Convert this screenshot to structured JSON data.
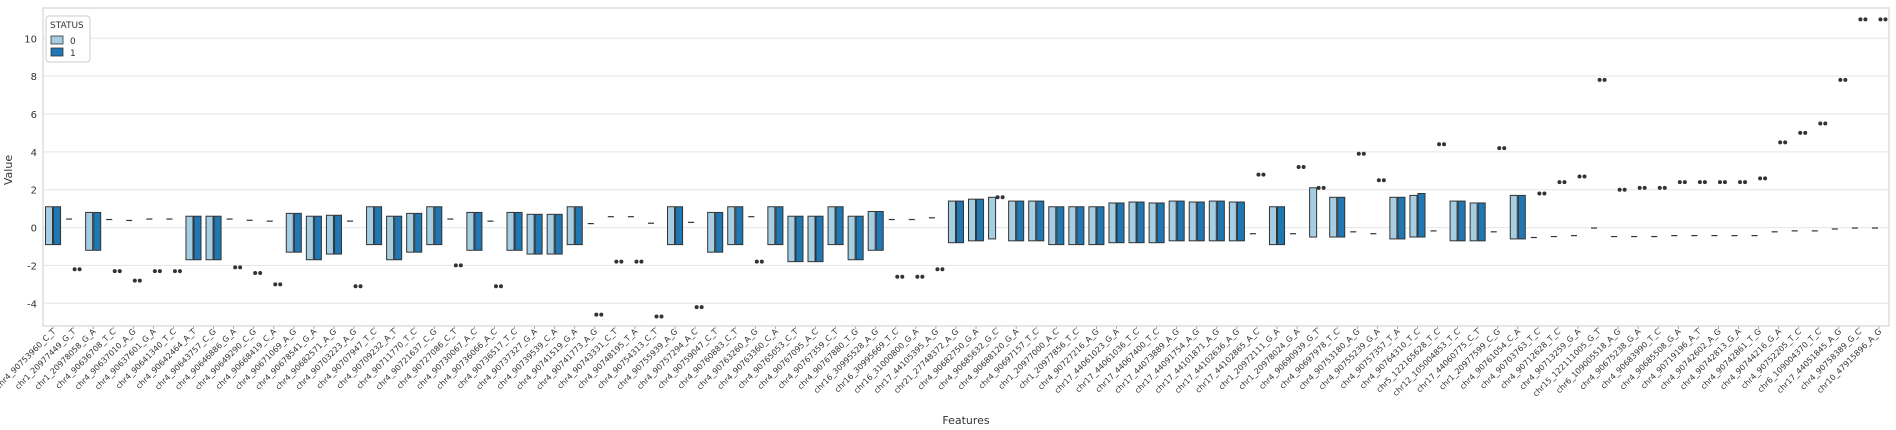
{
  "chart_data": {
    "type": "box",
    "title": "",
    "xlabel": "Features",
    "ylabel": "Value",
    "ylim": [
      -5.2,
      11.6
    ],
    "yticks": [
      -4,
      -2,
      0,
      2,
      4,
      6,
      8,
      10
    ],
    "grid": true,
    "legend": {
      "title": "STATUS",
      "entries": [
        "0",
        "1"
      ],
      "position": "top-left"
    },
    "series_colors": {
      "0": "#a6cee3",
      "1": "#1f78b4"
    },
    "categories": [
      "chr4_90753960_C_T",
      "chr1_20977449_G_T",
      "chr1_20978058_G_A",
      "chr4_90636708_T_C",
      "chr4_90637010_A_G",
      "chr4_90637601_G_A",
      "chr4_90641340_T_C",
      "chr4_90642464_A_T",
      "chr4_90643757_C_G",
      "chr4_90646886_G_A",
      "chr4_90649290_C_G",
      "chr4_90668419_C_A",
      "chr4_90671069_A_G",
      "chr4_90678541_G_A",
      "chr4_90682571_A_G",
      "chr4_90703223_A_G",
      "chr4_90707947_T_C",
      "chr4_90709232_A_T",
      "chr4_90711770_T_C",
      "chr4_90721637_C_G",
      "chr4_90727086_C_T",
      "chr4_90730067_A_C",
      "chr4_90736066_A_C",
      "chr4_90736517_T_C",
      "chr4_90737327_G_A",
      "chr4_90739539_C_A",
      "chr4_90741519_G_A",
      "chr4_90741773_A_G",
      "chr4_90743331_C_T",
      "chr4_90748195_T_A",
      "chr4_90754313_C_T",
      "chr4_90755939_A_G",
      "chr4_90757294_A_C",
      "chr4_90759047_C_T",
      "chr4_90760883_C_T",
      "chr4_90763260_A_G",
      "chr4_90763360_C_A",
      "chr4_90765053_C_T",
      "chr4_90767095_A_C",
      "chr4_90767359_C_T",
      "chr4_90767880_T_G",
      "chr16_30995528_A_G",
      "chr16_30995669_T_C",
      "chr16_31000800_G_A",
      "chr17_44105395_A_G",
      "chr21_27748372_A_G",
      "chr4_90682750_G_A",
      "chr4_90685632_G_C",
      "chr4_90688120_G_A",
      "chr4_90697157_T_C",
      "chr1_20977000_A_C",
      "chr1_20977856_T_C",
      "chr4_90727216_A_G",
      "chr17_44061023_G_A",
      "chr17_44061036_T_C",
      "chr17_44067400_T_C",
      "chr17_44073889_A_G",
      "chr17_44091754_A_G",
      "chr17_44101871_A_G",
      "chr17_44102636_A_G",
      "chr17_44102865_A_C",
      "chr1_20972111_G_A",
      "chr1_20978024_G_A",
      "chr4_90690939_G_T",
      "chr4_90697978_T_C",
      "chr4_90753180_A_G",
      "chr4_90755239_G_A",
      "chr4_90757357_T_A",
      "chr4_90764310_T_C",
      "chr5_122165628_T_C",
      "chr12_105004853_T_C",
      "chr17_44060775_C_T",
      "chr1_20977599_C_G",
      "chr4_90761054_C_A",
      "chr4_90703763_T_C",
      "chr4_90712628_T_C",
      "chr4_90713259_G_A",
      "chr15_122111005_G_T",
      "chr6_109005518_A_G",
      "chr4_90675238_G_A",
      "chr4_90683990_T_C",
      "chr4_90685508_G_A",
      "chr4_90719196_A_T",
      "chr4_90742602_A_G",
      "chr4_90742813_G_A",
      "chr4_90742861_T_G",
      "chr4_90744216_G_A",
      "chr4_90752205_T_C",
      "chr6_109004370_T_C",
      "chr17_44051845_A_G",
      "chr4_90758389_G_C",
      "chr10_47915896_A_G"
    ],
    "series": [
      {
        "name": "0",
        "boxes": [
          {
            "q1": -0.9,
            "q3": 1.1
          },
          {
            "q1": 0.4,
            "q3": 0.5
          },
          {
            "q1": -1.2,
            "q3": 0.8
          },
          {
            "q1": 0.4,
            "q3": 0.45
          },
          {
            "q1": 0.35,
            "q3": 0.4
          },
          {
            "q1": 0.42,
            "q3": 0.48
          },
          {
            "q1": 0.42,
            "q3": 0.48
          },
          {
            "q1": -1.7,
            "q3": 0.6
          },
          {
            "q1": -1.7,
            "q3": 0.6
          },
          {
            "q1": 0.42,
            "q3": 0.48
          },
          {
            "q1": 0.35,
            "q3": 0.42
          },
          {
            "q1": 0.3,
            "q3": 0.38
          },
          {
            "q1": -1.3,
            "q3": 0.75
          },
          {
            "q1": -1.7,
            "q3": 0.6
          },
          {
            "q1": -1.4,
            "q3": 0.65
          },
          {
            "q1": 0.3,
            "q3": 0.38
          },
          {
            "q1": -0.9,
            "q3": 1.1
          },
          {
            "q1": -1.7,
            "q3": 0.6
          },
          {
            "q1": -1.3,
            "q3": 0.75
          },
          {
            "q1": -0.9,
            "q3": 1.1
          },
          {
            "q1": 0.42,
            "q3": 0.48
          },
          {
            "q1": -1.2,
            "q3": 0.8
          },
          {
            "q1": 0.3,
            "q3": 0.38
          },
          {
            "q1": -1.2,
            "q3": 0.8
          },
          {
            "q1": -1.4,
            "q3": 0.7
          },
          {
            "q1": -1.4,
            "q3": 0.7
          },
          {
            "q1": -0.9,
            "q3": 1.1
          },
          {
            "q1": 0.18,
            "q3": 0.24
          },
          {
            "q1": 0.55,
            "q3": 0.6
          },
          {
            "q1": 0.55,
            "q3": 0.6
          },
          {
            "q1": 0.2,
            "q3": 0.26
          },
          {
            "q1": -0.9,
            "q3": 1.1
          },
          {
            "q1": 0.25,
            "q3": 0.3
          },
          {
            "q1": -1.3,
            "q3": 0.8
          },
          {
            "q1": -0.9,
            "q3": 1.1
          },
          {
            "q1": 0.55,
            "q3": 0.6
          },
          {
            "q1": -0.9,
            "q3": 1.1
          },
          {
            "q1": -1.8,
            "q3": 0.6
          },
          {
            "q1": -1.8,
            "q3": 0.6
          },
          {
            "q1": -0.9,
            "q3": 1.1
          },
          {
            "q1": -1.7,
            "q3": 0.6
          },
          {
            "q1": -1.2,
            "q3": 0.85
          },
          {
            "q1": 0.4,
            "q3": 0.45
          },
          {
            "q1": 0.4,
            "q3": 0.45
          },
          {
            "q1": 0.48,
            "q3": 0.55
          },
          {
            "q1": -0.8,
            "q3": 1.4
          },
          {
            "q1": -0.7,
            "q3": 1.5
          },
          {
            "q1": -0.6,
            "q3": 1.6
          },
          {
            "q1": -0.7,
            "q3": 1.4
          },
          {
            "q1": -0.7,
            "q3": 1.4
          },
          {
            "q1": -0.9,
            "q3": 1.1
          },
          {
            "q1": -0.9,
            "q3": 1.1
          },
          {
            "q1": -0.9,
            "q3": 1.1
          },
          {
            "q1": -0.8,
            "q3": 1.3
          },
          {
            "q1": -0.8,
            "q3": 1.35
          },
          {
            "q1": -0.8,
            "q3": 1.3
          },
          {
            "q1": -0.7,
            "q3": 1.4
          },
          {
            "q1": -0.7,
            "q3": 1.35
          },
          {
            "q1": -0.7,
            "q3": 1.4
          },
          {
            "q1": -0.7,
            "q3": 1.35
          },
          {
            "q1": -0.35,
            "q3": -0.3
          },
          {
            "q1": -0.9,
            "q3": 1.1
          },
          {
            "q1": -0.35,
            "q3": -0.3
          },
          {
            "q1": -0.5,
            "q3": 2.1
          },
          {
            "q1": -0.5,
            "q3": 1.6
          },
          {
            "q1": -0.25,
            "q3": -0.2
          },
          {
            "q1": -0.35,
            "q3": -0.3
          },
          {
            "q1": -0.6,
            "q3": 1.6
          },
          {
            "q1": -0.5,
            "q3": 1.7
          },
          {
            "q1": -0.2,
            "q3": -0.15
          },
          {
            "q1": -0.7,
            "q3": 1.4
          },
          {
            "q1": -0.7,
            "q3": 1.3
          },
          {
            "q1": -0.25,
            "q3": -0.2
          },
          {
            "q1": -0.6,
            "q3": 1.7
          },
          {
            "q1": -0.55,
            "q3": -0.5
          },
          {
            "q1": -0.5,
            "q3": -0.45
          },
          {
            "q1": -0.45,
            "q3": -0.4
          },
          {
            "q1": -0.05,
            "q3": 0.0
          },
          {
            "q1": -0.5,
            "q3": -0.45
          },
          {
            "q1": -0.5,
            "q3": -0.45
          },
          {
            "q1": -0.5,
            "q3": -0.45
          },
          {
            "q1": -0.45,
            "q3": -0.4
          },
          {
            "q1": -0.45,
            "q3": -0.4
          },
          {
            "q1": -0.45,
            "q3": -0.4
          },
          {
            "q1": -0.45,
            "q3": -0.4
          },
          {
            "q1": -0.45,
            "q3": -0.4
          },
          {
            "q1": -0.25,
            "q3": -0.2
          },
          {
            "q1": -0.2,
            "q3": -0.15
          },
          {
            "q1": -0.2,
            "q3": -0.15
          },
          {
            "q1": -0.1,
            "q3": -0.05
          },
          {
            "q1": -0.05,
            "q3": 0.0
          },
          {
            "q1": -0.05,
            "q3": 0.0
          }
        ]
      },
      {
        "name": "1",
        "boxes": [
          {
            "q1": -0.9,
            "q3": 1.1
          },
          {
            "q1": -2.2,
            "q3": -2.2
          },
          {
            "q1": -1.2,
            "q3": 0.8
          },
          {
            "q1": -2.3,
            "q3": -2.3
          },
          {
            "q1": -2.8,
            "q3": -2.8
          },
          {
            "q1": -2.3,
            "q3": -2.3
          },
          {
            "q1": -2.3,
            "q3": -2.3
          },
          {
            "q1": -1.7,
            "q3": 0.6
          },
          {
            "q1": -1.7,
            "q3": 0.6
          },
          {
            "q1": -2.1,
            "q3": -2.1
          },
          {
            "q1": -2.4,
            "q3": -2.4
          },
          {
            "q1": -3.0,
            "q3": -3.0
          },
          {
            "q1": -1.3,
            "q3": 0.75
          },
          {
            "q1": -1.7,
            "q3": 0.6
          },
          {
            "q1": -1.4,
            "q3": 0.65
          },
          {
            "q1": -3.1,
            "q3": -3.1
          },
          {
            "q1": -0.9,
            "q3": 1.1
          },
          {
            "q1": -1.7,
            "q3": 0.6
          },
          {
            "q1": -1.3,
            "q3": 0.75
          },
          {
            "q1": -0.9,
            "q3": 1.1
          },
          {
            "q1": -2.0,
            "q3": -2.0
          },
          {
            "q1": -1.2,
            "q3": 0.8
          },
          {
            "q1": -3.1,
            "q3": -3.1
          },
          {
            "q1": -1.2,
            "q3": 0.8
          },
          {
            "q1": -1.4,
            "q3": 0.7
          },
          {
            "q1": -1.4,
            "q3": 0.7
          },
          {
            "q1": -0.9,
            "q3": 1.1
          },
          {
            "q1": -4.6,
            "q3": -4.6
          },
          {
            "q1": -1.8,
            "q3": -1.8
          },
          {
            "q1": -1.8,
            "q3": -1.8
          },
          {
            "q1": -4.7,
            "q3": -4.7
          },
          {
            "q1": -0.9,
            "q3": 1.1
          },
          {
            "q1": -4.2,
            "q3": -4.2
          },
          {
            "q1": -1.3,
            "q3": 0.8
          },
          {
            "q1": -0.9,
            "q3": 1.1
          },
          {
            "q1": -1.8,
            "q3": -1.8
          },
          {
            "q1": -0.9,
            "q3": 1.1
          },
          {
            "q1": -1.8,
            "q3": 0.6
          },
          {
            "q1": -1.8,
            "q3": 0.6
          },
          {
            "q1": -0.9,
            "q3": 1.1
          },
          {
            "q1": -1.7,
            "q3": 0.6
          },
          {
            "q1": -1.2,
            "q3": 0.85
          },
          {
            "q1": -2.6,
            "q3": -2.6
          },
          {
            "q1": -2.6,
            "q3": -2.6
          },
          {
            "q1": -2.2,
            "q3": -2.2
          },
          {
            "q1": -0.8,
            "q3": 1.4
          },
          {
            "q1": -0.7,
            "q3": 1.5
          },
          {
            "q1": 1.6,
            "q3": 1.6
          },
          {
            "q1": -0.7,
            "q3": 1.4
          },
          {
            "q1": -0.7,
            "q3": 1.4
          },
          {
            "q1": -0.9,
            "q3": 1.1
          },
          {
            "q1": -0.9,
            "q3": 1.1
          },
          {
            "q1": -0.9,
            "q3": 1.1
          },
          {
            "q1": -0.8,
            "q3": 1.3
          },
          {
            "q1": -0.8,
            "q3": 1.35
          },
          {
            "q1": -0.8,
            "q3": 1.3
          },
          {
            "q1": -0.7,
            "q3": 1.4
          },
          {
            "q1": -0.7,
            "q3": 1.35
          },
          {
            "q1": -0.7,
            "q3": 1.4
          },
          {
            "q1": -0.7,
            "q3": 1.35
          },
          {
            "q1": 2.8,
            "q3": 2.8
          },
          {
            "q1": -0.9,
            "q3": 1.1
          },
          {
            "q1": 3.2,
            "q3": 3.2
          },
          {
            "q1": 2.1,
            "q3": 2.1
          },
          {
            "q1": -0.5,
            "q3": 1.6
          },
          {
            "q1": 3.9,
            "q3": 3.9
          },
          {
            "q1": 2.5,
            "q3": 2.5
          },
          {
            "q1": -0.6,
            "q3": 1.6
          },
          {
            "q1": -0.5,
            "q3": 1.8
          },
          {
            "q1": 4.4,
            "q3": 4.4
          },
          {
            "q1": -0.7,
            "q3": 1.4
          },
          {
            "q1": -0.7,
            "q3": 1.3
          },
          {
            "q1": 4.2,
            "q3": 4.2
          },
          {
            "q1": -0.6,
            "q3": 1.7
          },
          {
            "q1": 1.8,
            "q3": 1.8
          },
          {
            "q1": 2.4,
            "q3": 2.4
          },
          {
            "q1": 2.7,
            "q3": 2.7
          },
          {
            "q1": 7.8,
            "q3": 7.8
          },
          {
            "q1": 2.0,
            "q3": 2.0
          },
          {
            "q1": 2.1,
            "q3": 2.1
          },
          {
            "q1": 2.1,
            "q3": 2.1
          },
          {
            "q1": 2.4,
            "q3": 2.4
          },
          {
            "q1": 2.4,
            "q3": 2.4
          },
          {
            "q1": 2.4,
            "q3": 2.4
          },
          {
            "q1": 2.4,
            "q3": 2.4
          },
          {
            "q1": 2.6,
            "q3": 2.6
          },
          {
            "q1": 4.5,
            "q3": 4.5
          },
          {
            "q1": 5.0,
            "q3": 5.0
          },
          {
            "q1": 5.5,
            "q3": 5.5
          },
          {
            "q1": 7.8,
            "q3": 7.8
          },
          {
            "q1": 11.0,
            "q3": 11.0
          },
          {
            "q1": 11.0,
            "q3": 11.0
          }
        ]
      }
    ]
  }
}
